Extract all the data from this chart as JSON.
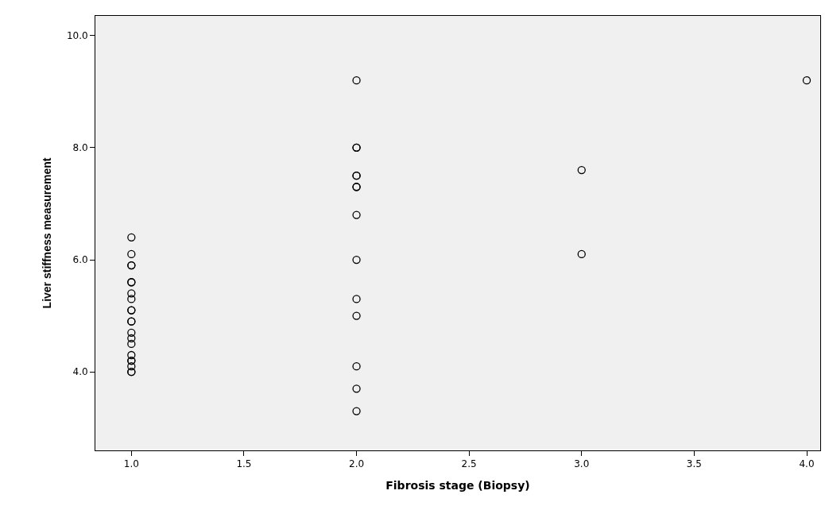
{
  "chart_data": {
    "type": "scatter",
    "xlabel": "Fibrosis stage (Biopsy)",
    "ylabel": "Liver stiffness measurement",
    "x": [
      1,
      1,
      1,
      1,
      1,
      1,
      1,
      1,
      1,
      1,
      1,
      1,
      1,
      1,
      1,
      1,
      1,
      1,
      1,
      1,
      1,
      2,
      2,
      2,
      2,
      2,
      2,
      2,
      2,
      2,
      2,
      2,
      2,
      2,
      2,
      3,
      3,
      4
    ],
    "series": [
      {
        "color": "#000000",
        "values": [
          6.4,
          6.1,
          5.9,
          5.9,
          5.6,
          5.6,
          5.4,
          5.3,
          5.1,
          5.1,
          4.9,
          4.9,
          4.7,
          4.6,
          4.5,
          4.3,
          4.2,
          4.2,
          4.1,
          4.0,
          4.0,
          9.2,
          8.0,
          8.0,
          7.5,
          7.5,
          7.3,
          7.3,
          6.8,
          6.0,
          5.3,
          5.0,
          4.1,
          3.7,
          3.3,
          7.6,
          6.1,
          9.2
        ]
      }
    ],
    "xlim": [
      0.84,
      4.06
    ],
    "xticks": [
      {
        "value": 1,
        "label": "1.0"
      },
      {
        "value": 1.5,
        "label": "1.5"
      },
      {
        "value": 2,
        "label": "2.0"
      },
      {
        "value": 2.5,
        "label": "2.5"
      },
      {
        "value": 3,
        "label": "3.0"
      },
      {
        "value": 3.5,
        "label": "3.5"
      },
      {
        "value": 4,
        "label": "4.0"
      }
    ],
    "ylim": [
      2.6,
      10.35
    ],
    "yticks": [
      {
        "value": 4,
        "label": "4.0"
      },
      {
        "value": 6,
        "label": "6.0"
      },
      {
        "value": 8,
        "label": "8.0"
      },
      {
        "value": 10,
        "label": "10.0"
      }
    ],
    "grid": false,
    "legend": false,
    "marker": "circle"
  }
}
